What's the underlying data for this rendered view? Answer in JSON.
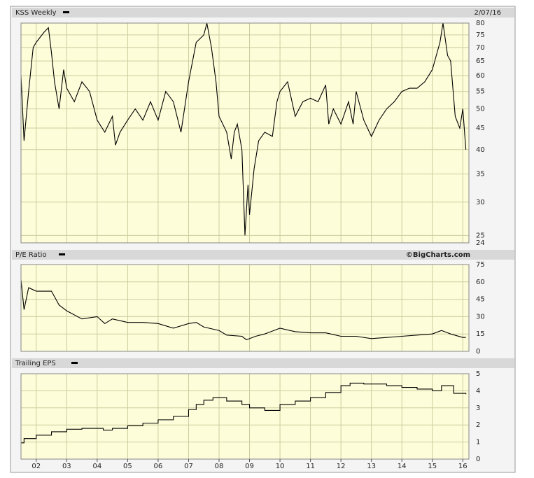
{
  "chart_data": [
    {
      "type": "line",
      "title": "KSS Weekly",
      "date": "2/07/16",
      "color": "#000000",
      "log_scale": true,
      "grid": true,
      "x": [
        2001.5,
        2001.6,
        2001.75,
        2001.9,
        2002.0,
        2002.25,
        2002.4,
        2002.5,
        2002.6,
        2002.75,
        2002.9,
        2003.0,
        2003.25,
        2003.5,
        2003.75,
        2004.0,
        2004.25,
        2004.5,
        2004.6,
        2004.75,
        2005.0,
        2005.25,
        2005.5,
        2005.75,
        2006.0,
        2006.25,
        2006.5,
        2006.75,
        2007.0,
        2007.25,
        2007.5,
        2007.6,
        2007.75,
        2007.9,
        2008.0,
        2008.25,
        2008.4,
        2008.5,
        2008.6,
        2008.75,
        2008.85,
        2008.95,
        2009.0,
        2009.15,
        2009.3,
        2009.5,
        2009.75,
        2009.9,
        2010.0,
        2010.25,
        2010.5,
        2010.75,
        2011.0,
        2011.25,
        2011.5,
        2011.6,
        2011.75,
        2012.0,
        2012.25,
        2012.4,
        2012.5,
        2012.75,
        2013.0,
        2013.25,
        2013.5,
        2013.75,
        2014.0,
        2014.25,
        2014.5,
        2014.75,
        2015.0,
        2015.25,
        2015.35,
        2015.5,
        2015.6,
        2015.75,
        2015.9,
        2016.0,
        2016.1
      ],
      "values": [
        60,
        42,
        55,
        70,
        72,
        76,
        78,
        68,
        58,
        50,
        62,
        56,
        52,
        58,
        55,
        47,
        44,
        48,
        41,
        44,
        47,
        50,
        47,
        52,
        47,
        55,
        52,
        44,
        58,
        72,
        75,
        80,
        70,
        58,
        48,
        44,
        38,
        44,
        46,
        40,
        25,
        33,
        28,
        36,
        42,
        44,
        43,
        52,
        55,
        58,
        48,
        52,
        53,
        52,
        57,
        46,
        50,
        46,
        52,
        46,
        55,
        47,
        43,
        47,
        50,
        52,
        55,
        56,
        56,
        58,
        62,
        72,
        80,
        67,
        65,
        48,
        45,
        50,
        40
      ],
      "xlim": [
        2001.5,
        2016.2
      ],
      "ylim": [
        24,
        80
      ],
      "yticks": [
        24,
        25,
        30,
        35,
        40,
        45,
        50,
        55,
        60,
        65,
        70,
        75,
        80
      ]
    },
    {
      "type": "line",
      "title": "P/E Ratio",
      "source": "©BigCharts.com",
      "color": "#000000",
      "log_scale": false,
      "grid": true,
      "x": [
        2001.5,
        2001.6,
        2001.75,
        2002.0,
        2002.5,
        2002.75,
        2003.0,
        2003.5,
        2004.0,
        2004.25,
        2004.5,
        2005.0,
        2005.5,
        2006.0,
        2006.5,
        2007.0,
        2007.25,
        2007.5,
        2008.0,
        2008.25,
        2008.75,
        2008.9,
        2009.2,
        2009.5,
        2009.8,
        2010.0,
        2010.5,
        2011.0,
        2011.5,
        2012.0,
        2012.5,
        2013.0,
        2013.5,
        2014.0,
        2014.5,
        2015.0,
        2015.3,
        2015.6,
        2016.0,
        2016.1
      ],
      "values": [
        62,
        36,
        55,
        52,
        52,
        40,
        35,
        28,
        30,
        24,
        28,
        25,
        25,
        24,
        20,
        24,
        25,
        21,
        18,
        14,
        13,
        10,
        13,
        15,
        18,
        20,
        17,
        16,
        16,
        13,
        13,
        11,
        12,
        13,
        14,
        15,
        18,
        15,
        12,
        12
      ],
      "xlim": [
        2001.5,
        2016.2
      ],
      "ylim": [
        0,
        75
      ],
      "yticks": [
        0,
        15,
        30,
        45,
        60,
        75
      ]
    },
    {
      "type": "line",
      "title": "Trailing EPS",
      "color": "#000000",
      "log_scale": false,
      "grid": true,
      "step": true,
      "x": [
        2001.5,
        2001.6,
        2002.0,
        2002.5,
        2003.0,
        2003.5,
        2004.0,
        2004.2,
        2004.5,
        2005.0,
        2005.5,
        2006.0,
        2006.5,
        2007.0,
        2007.25,
        2007.5,
        2007.8,
        2008.25,
        2008.75,
        2009.0,
        2009.5,
        2009.75,
        2010.0,
        2010.5,
        2011.0,
        2011.5,
        2012.0,
        2012.3,
        2012.75,
        2013.0,
        2013.5,
        2014.0,
        2014.5,
        2015.0,
        2015.3,
        2015.7,
        2016.1
      ],
      "values": [
        0.95,
        1.2,
        1.4,
        1.6,
        1.75,
        1.8,
        1.8,
        1.7,
        1.8,
        1.95,
        2.1,
        2.3,
        2.5,
        2.9,
        3.2,
        3.45,
        3.6,
        3.4,
        3.2,
        3.0,
        2.85,
        2.85,
        3.2,
        3.4,
        3.6,
        3.9,
        4.3,
        4.45,
        4.4,
        4.4,
        4.3,
        4.2,
        4.1,
        4.0,
        4.3,
        3.85,
        3.8
      ],
      "xlim": [
        2001.5,
        2016.2
      ],
      "ylim": [
        0,
        5
      ],
      "yticks": [
        0,
        1,
        2,
        3,
        4,
        5
      ],
      "xticks": [
        {
          "value": 2002,
          "label": "02"
        },
        {
          "value": 2003,
          "label": "03"
        },
        {
          "value": 2004,
          "label": "04"
        },
        {
          "value": 2005,
          "label": "05"
        },
        {
          "value": 2006,
          "label": "06"
        },
        {
          "value": 2007,
          "label": "07"
        },
        {
          "value": 2008,
          "label": "08"
        },
        {
          "value": 2009,
          "label": "09"
        },
        {
          "value": 2010,
          "label": "10"
        },
        {
          "value": 2011,
          "label": "11"
        },
        {
          "value": 2012,
          "label": "12"
        },
        {
          "value": 2013,
          "label": "13"
        },
        {
          "value": 2014,
          "label": "14"
        },
        {
          "value": 2015,
          "label": "15"
        },
        {
          "value": 2016,
          "label": "16"
        }
      ]
    }
  ]
}
